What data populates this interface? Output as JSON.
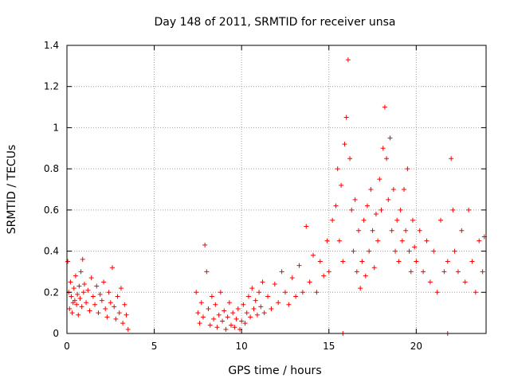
{
  "chart_data": {
    "type": "scatter",
    "title": "Day 148 of 2011, SRMTID for receiver unsa",
    "xlabel": "GPS time / hours",
    "ylabel": "SRMTID / TECUs",
    "xlim": [
      0,
      24
    ],
    "ylim": [
      0,
      1.4
    ],
    "x_ticks": [
      0,
      5,
      10,
      15,
      20
    ],
    "x_tick_labels": [
      "0",
      "5",
      "10",
      "15",
      "20"
    ],
    "y_ticks": [
      0,
      0.2,
      0.4,
      0.6,
      0.8,
      1,
      1.2,
      1.4
    ],
    "y_tick_labels": [
      "0",
      "0.2",
      "0.4",
      "0.6",
      "0.8",
      "1",
      "1.2",
      "1.4"
    ],
    "grid": true,
    "marker": "plus",
    "series": [
      {
        "name": "SRMTID",
        "color": "#ff0000",
        "points": [
          [
            0.05,
            0.35
          ],
          [
            0.1,
            0.2
          ],
          [
            0.15,
            0.12
          ],
          [
            0.2,
            0.25
          ],
          [
            0.25,
            0.18
          ],
          [
            0.3,
            0.1
          ],
          [
            0.35,
            0.15
          ],
          [
            0.4,
            0.22
          ],
          [
            0.45,
            0.16
          ],
          [
            0.5,
            0.28
          ],
          [
            0.55,
            0.14
          ],
          [
            0.6,
            0.19
          ],
          [
            0.65,
            0.09
          ],
          [
            0.7,
            0.23
          ],
          [
            0.75,
            0.17
          ],
          [
            0.8,
            0.3
          ],
          [
            0.85,
            0.13
          ],
          [
            0.9,
            0.36
          ],
          [
            0.95,
            0.2
          ],
          [
            1.0,
            0.24
          ],
          [
            1.1,
            0.15
          ],
          [
            1.2,
            0.21
          ],
          [
            1.3,
            0.11
          ],
          [
            1.4,
            0.27
          ],
          [
            1.5,
            0.18
          ],
          [
            1.6,
            0.14
          ],
          [
            1.7,
            0.23
          ],
          [
            1.8,
            0.1
          ],
          [
            1.9,
            0.19
          ],
          [
            2.0,
            0.16
          ],
          [
            2.1,
            0.25
          ],
          [
            2.2,
            0.12
          ],
          [
            2.3,
            0.08
          ],
          [
            2.4,
            0.2
          ],
          [
            2.5,
            0.15
          ],
          [
            2.6,
            0.32
          ],
          [
            2.7,
            0.13
          ],
          [
            2.8,
            0.07
          ],
          [
            2.9,
            0.18
          ],
          [
            3.0,
            0.1
          ],
          [
            3.1,
            0.22
          ],
          [
            3.2,
            0.05
          ],
          [
            3.3,
            0.14
          ],
          [
            3.4,
            0.09
          ],
          [
            3.5,
            0.02
          ],
          [
            7.4,
            0.2
          ],
          [
            7.5,
            0.1
          ],
          [
            7.6,
            0.05
          ],
          [
            7.7,
            0.15
          ],
          [
            7.8,
            0.08
          ],
          [
            7.9,
            0.43
          ],
          [
            8.0,
            0.3
          ],
          [
            8.1,
            0.12
          ],
          [
            8.2,
            0.04
          ],
          [
            8.3,
            0.18
          ],
          [
            8.4,
            0.07
          ],
          [
            8.5,
            0.14
          ],
          [
            8.6,
            0.03
          ],
          [
            8.7,
            0.09
          ],
          [
            8.8,
            0.2
          ],
          [
            8.9,
            0.06
          ],
          [
            9.0,
            0.11
          ],
          [
            9.1,
            0.02
          ],
          [
            9.2,
            0.08
          ],
          [
            9.3,
            0.15
          ],
          [
            9.4,
            0.04
          ],
          [
            9.5,
            0.1
          ],
          [
            9.6,
            0.03
          ],
          [
            9.7,
            0.07
          ],
          [
            9.8,
            0.12
          ],
          [
            9.9,
            0.02
          ],
          [
            10.0,
            0.06
          ],
          [
            10.1,
            0.14
          ],
          [
            10.2,
            0.05
          ],
          [
            10.3,
            0.1
          ],
          [
            10.4,
            0.18
          ],
          [
            10.5,
            0.08
          ],
          [
            10.6,
            0.22
          ],
          [
            10.7,
            0.12
          ],
          [
            10.8,
            0.16
          ],
          [
            10.9,
            0.09
          ],
          [
            11.0,
            0.2
          ],
          [
            11.1,
            0.13
          ],
          [
            11.2,
            0.25
          ],
          [
            11.3,
            0.1
          ],
          [
            11.5,
            0.18
          ],
          [
            11.7,
            0.12
          ],
          [
            11.9,
            0.24
          ],
          [
            12.1,
            0.15
          ],
          [
            12.3,
            0.3
          ],
          [
            12.5,
            0.2
          ],
          [
            12.7,
            0.14
          ],
          [
            12.9,
            0.27
          ],
          [
            13.1,
            0.18
          ],
          [
            13.3,
            0.33
          ],
          [
            13.5,
            0.2
          ],
          [
            13.7,
            0.52
          ],
          [
            13.9,
            0.25
          ],
          [
            14.1,
            0.38
          ],
          [
            14.3,
            0.2
          ],
          [
            14.5,
            0.35
          ],
          [
            14.7,
            0.28
          ],
          [
            14.9,
            0.45
          ],
          [
            15.0,
            0.3
          ],
          [
            15.2,
            0.55
          ],
          [
            15.4,
            0.62
          ],
          [
            15.5,
            0.8
          ],
          [
            15.6,
            0.45
          ],
          [
            15.7,
            0.72
          ],
          [
            15.8,
            0.35
          ],
          [
            15.9,
            0.92
          ],
          [
            16.0,
            1.05
          ],
          [
            16.1,
            1.33
          ],
          [
            16.2,
            0.85
          ],
          [
            16.3,
            0.6
          ],
          [
            16.4,
            0.4
          ],
          [
            16.5,
            0.65
          ],
          [
            16.6,
            0.3
          ],
          [
            16.7,
            0.5
          ],
          [
            16.8,
            0.22
          ],
          [
            16.9,
            0.35
          ],
          [
            17.0,
            0.55
          ],
          [
            17.1,
            0.28
          ],
          [
            17.2,
            0.62
          ],
          [
            17.3,
            0.4
          ],
          [
            17.4,
            0.7
          ],
          [
            17.5,
            0.5
          ],
          [
            17.6,
            0.32
          ],
          [
            17.7,
            0.58
          ],
          [
            17.8,
            0.45
          ],
          [
            17.9,
            0.75
          ],
          [
            18.0,
            0.6
          ],
          [
            18.1,
            0.9
          ],
          [
            18.2,
            1.1
          ],
          [
            18.3,
            0.85
          ],
          [
            18.4,
            0.65
          ],
          [
            18.5,
            0.95
          ],
          [
            18.6,
            0.5
          ],
          [
            18.7,
            0.7
          ],
          [
            18.8,
            0.4
          ],
          [
            18.9,
            0.55
          ],
          [
            19.0,
            0.35
          ],
          [
            19.1,
            0.6
          ],
          [
            19.2,
            0.45
          ],
          [
            19.3,
            0.7
          ],
          [
            19.4,
            0.5
          ],
          [
            19.5,
            0.8
          ],
          [
            19.6,
            0.4
          ],
          [
            19.7,
            0.3
          ],
          [
            19.8,
            0.55
          ],
          [
            19.9,
            0.42
          ],
          [
            20.0,
            0.35
          ],
          [
            20.2,
            0.5
          ],
          [
            20.4,
            0.3
          ],
          [
            20.6,
            0.45
          ],
          [
            20.8,
            0.25
          ],
          [
            21.0,
            0.4
          ],
          [
            21.2,
            0.2
          ],
          [
            21.4,
            0.55
          ],
          [
            21.6,
            0.3
          ],
          [
            21.8,
            0.35
          ],
          [
            22.0,
            0.85
          ],
          [
            22.1,
            0.6
          ],
          [
            22.2,
            0.4
          ],
          [
            22.4,
            0.3
          ],
          [
            22.6,
            0.5
          ],
          [
            22.8,
            0.25
          ],
          [
            23.0,
            0.6
          ],
          [
            23.2,
            0.35
          ],
          [
            23.4,
            0.2
          ],
          [
            23.6,
            0.45
          ],
          [
            23.8,
            0.3
          ],
          [
            23.9,
            0.47
          ],
          [
            15.8,
            0.0
          ],
          [
            21.8,
            0.0
          ]
        ]
      }
    ]
  }
}
